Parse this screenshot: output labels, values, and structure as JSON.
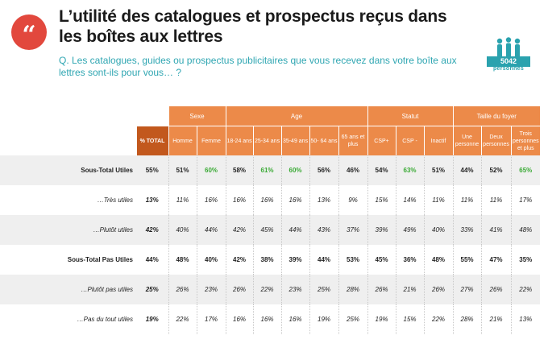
{
  "title": "L’utilité des catalogues et prospectus reçus dans les boîtes aux lettres",
  "question": "Q. Les catalogues, guides ou prospectus publicitaires que vous recevez dans votre boîte aux lettres sont-ils pour vous… ?",
  "logo": {
    "number": "5042",
    "caption": "personnes"
  },
  "colors": {
    "orange": "#ec8a49",
    "dark_orange": "#c2581d",
    "teal": "#2fa6b2",
    "red": "#e2483d",
    "green_highlight": "#3aaa35"
  },
  "groups": [
    {
      "label": "Sexe",
      "span": 2
    },
    {
      "label": "Age",
      "span": 5
    },
    {
      "label": "Statut",
      "span": 3
    },
    {
      "label": "Taille du foyer",
      "span": 3
    }
  ],
  "columns": [
    "% TOTAL",
    "Homme",
    "Femme",
    "18-24 ans",
    "25-34 ans",
    "35-49 ans",
    "50- 64 ans",
    "65 ans et plus",
    "CSP+",
    "CSP -",
    "Inactif",
    "Une personne",
    "Deux personnes",
    "Trois personnes et plus"
  ],
  "rows": [
    {
      "label": "Sous-Total Utiles",
      "values": [
        "55%",
        "51%",
        "60%",
        "58%",
        "61%",
        "60%",
        "56%",
        "46%",
        "54%",
        "63%",
        "51%",
        "44%",
        "52%",
        "65%"
      ],
      "highlight": [
        2,
        4,
        5,
        9,
        13
      ]
    },
    {
      "label": "…Très utiles",
      "values": [
        "13%",
        "11%",
        "16%",
        "16%",
        "16%",
        "16%",
        "13%",
        "9%",
        "15%",
        "14%",
        "11%",
        "11%",
        "11%",
        "17%"
      ],
      "highlight": []
    },
    {
      "label": "…Plutôt utiles",
      "values": [
        "42%",
        "40%",
        "44%",
        "42%",
        "45%",
        "44%",
        "43%",
        "37%",
        "39%",
        "49%",
        "40%",
        "33%",
        "41%",
        "48%"
      ],
      "highlight": []
    },
    {
      "label": "Sous-Total Pas Utiles",
      "values": [
        "44%",
        "48%",
        "40%",
        "42%",
        "38%",
        "39%",
        "44%",
        "53%",
        "45%",
        "36%",
        "48%",
        "55%",
        "47%",
        "35%"
      ],
      "highlight": []
    },
    {
      "label": "…Plutôt pas utiles",
      "values": [
        "25%",
        "26%",
        "23%",
        "26%",
        "22%",
        "23%",
        "25%",
        "28%",
        "26%",
        "21%",
        "26%",
        "27%",
        "26%",
        "22%"
      ],
      "highlight": []
    },
    {
      "label": "…Pas du tout utiles",
      "values": [
        "19%",
        "22%",
        "17%",
        "16%",
        "16%",
        "16%",
        "19%",
        "25%",
        "19%",
        "15%",
        "22%",
        "28%",
        "21%",
        "13%"
      ],
      "highlight": []
    }
  ]
}
